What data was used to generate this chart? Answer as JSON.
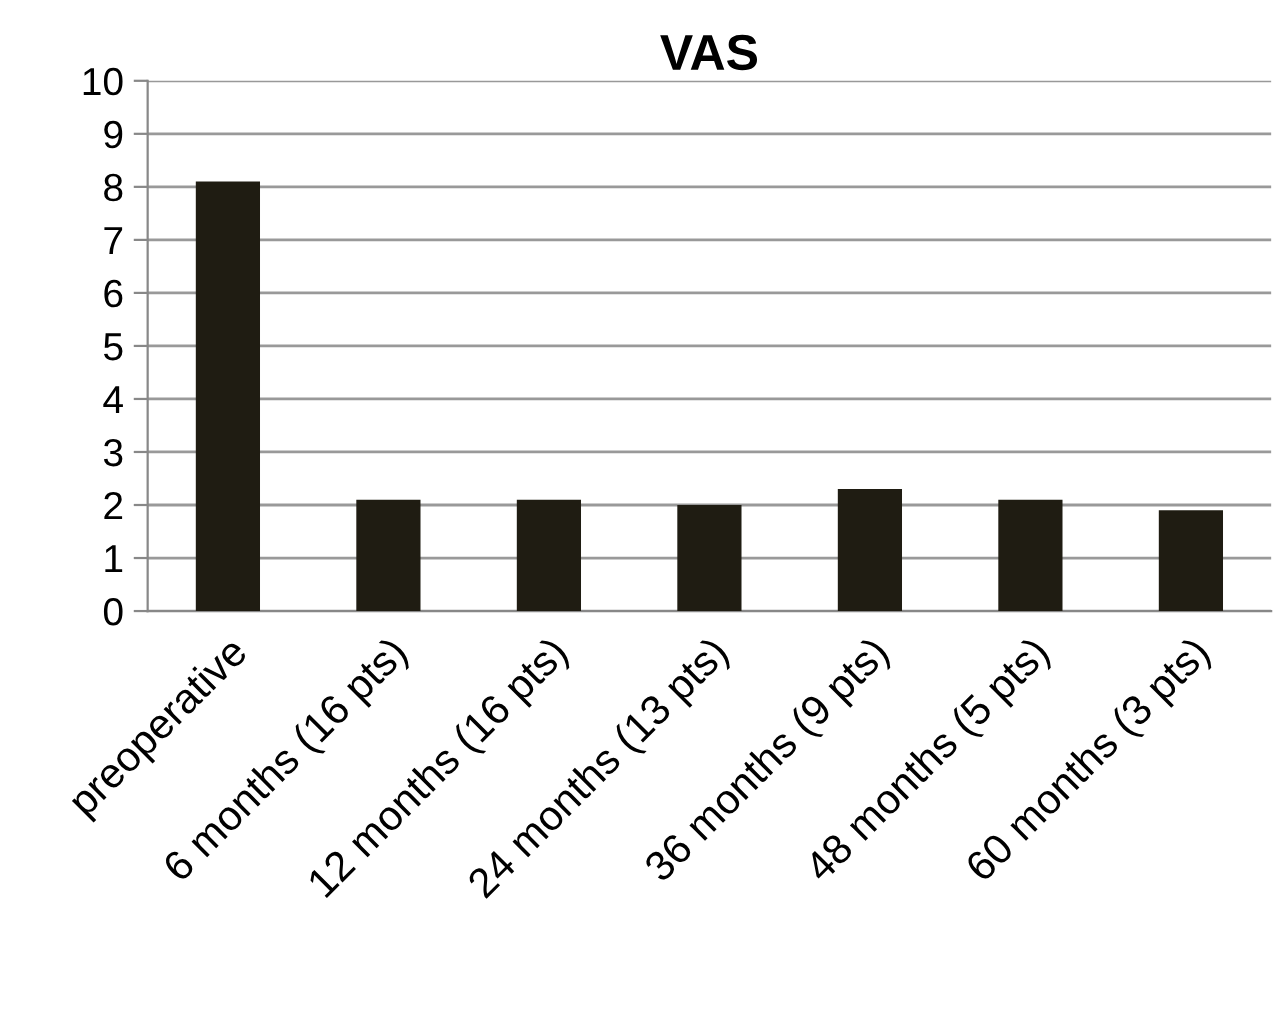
{
  "chart_data": {
    "type": "bar",
    "title": "VAS",
    "categories": [
      "preoperative",
      "6 months (16 pts)",
      "12 months (16 pts)",
      "24 months (13 pts)",
      "36 months (9 pts)",
      "48 months (5 pts)",
      "60 months (3 pts)"
    ],
    "values": [
      8.1,
      2.1,
      2.1,
      2.0,
      2.3,
      2.1,
      1.9
    ],
    "color": "#1f1c12",
    "ylim": [
      0,
      10
    ],
    "yticks": [
      0,
      1,
      2,
      3,
      4,
      5,
      6,
      7,
      8,
      9,
      10
    ],
    "grid": "y"
  }
}
